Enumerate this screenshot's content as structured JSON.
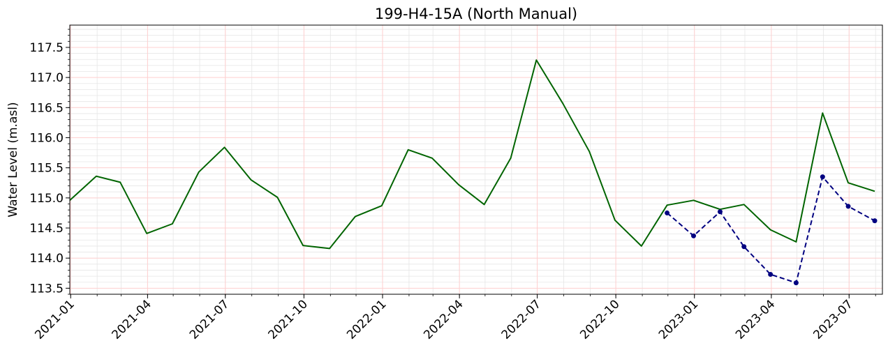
{
  "chart_data": {
    "type": "line",
    "title": "199-H4-15A (North Manual)",
    "xlabel": "",
    "ylabel": "Water Level (m.asl)",
    "xlim": [
      "2020-12-31",
      "2023-08-09"
    ],
    "ylim": [
      113.4,
      117.87
    ],
    "yticks": [
      113.5,
      114.0,
      114.5,
      115.0,
      115.5,
      116.0,
      116.5,
      117.0,
      117.5
    ],
    "xtick_labels": [
      "2021-01",
      "2021-04",
      "2021-07",
      "2021-10",
      "2022-01",
      "2022-04",
      "2022-07",
      "2022-10",
      "2023-01",
      "2023-04",
      "2023-07"
    ],
    "xtick_dates": [
      "2021-01-01",
      "2021-04-01",
      "2021-07-01",
      "2021-10-01",
      "2022-01-01",
      "2022-04-01",
      "2022-07-01",
      "2022-10-01",
      "2023-01-01",
      "2023-04-01",
      "2023-07-01"
    ],
    "grid": true,
    "legend": "none",
    "series": [
      {
        "color": "#006400",
        "style": "solid",
        "markers": false,
        "x": [
          "2020-12-31",
          "2021-01-31",
          "2021-02-28",
          "2021-03-31",
          "2021-04-30",
          "2021-05-31",
          "2021-06-30",
          "2021-07-31",
          "2021-08-31",
          "2021-09-30",
          "2021-10-31",
          "2021-11-30",
          "2021-12-31",
          "2022-01-31",
          "2022-02-28",
          "2022-03-31",
          "2022-04-30",
          "2022-05-31",
          "2022-06-30",
          "2022-07-31",
          "2022-08-31",
          "2022-09-30",
          "2022-10-31",
          "2022-11-30",
          "2022-12-31",
          "2023-01-31",
          "2023-02-28",
          "2023-03-31",
          "2023-04-30",
          "2023-05-31",
          "2023-06-30",
          "2023-07-31"
        ],
        "values": [
          114.96,
          115.36,
          115.26,
          114.41,
          114.57,
          115.43,
          115.84,
          115.3,
          115.01,
          114.21,
          114.16,
          114.69,
          114.87,
          115.8,
          115.66,
          115.22,
          114.89,
          115.66,
          117.29,
          116.57,
          115.77,
          114.63,
          114.2,
          114.88,
          114.96,
          114.81,
          114.89,
          114.47,
          114.27,
          116.41,
          115.25,
          115.11
        ]
      },
      {
        "color": "#000080",
        "style": "dashed",
        "markers": true,
        "x": [
          "2022-11-30",
          "2022-12-31",
          "2023-01-31",
          "2023-02-28",
          "2023-03-31",
          "2023-04-30",
          "2023-05-31",
          "2023-06-30",
          "2023-07-31"
        ],
        "values": [
          114.75,
          114.37,
          114.77,
          114.19,
          113.73,
          113.59,
          115.35,
          114.86,
          114.62
        ]
      }
    ]
  }
}
